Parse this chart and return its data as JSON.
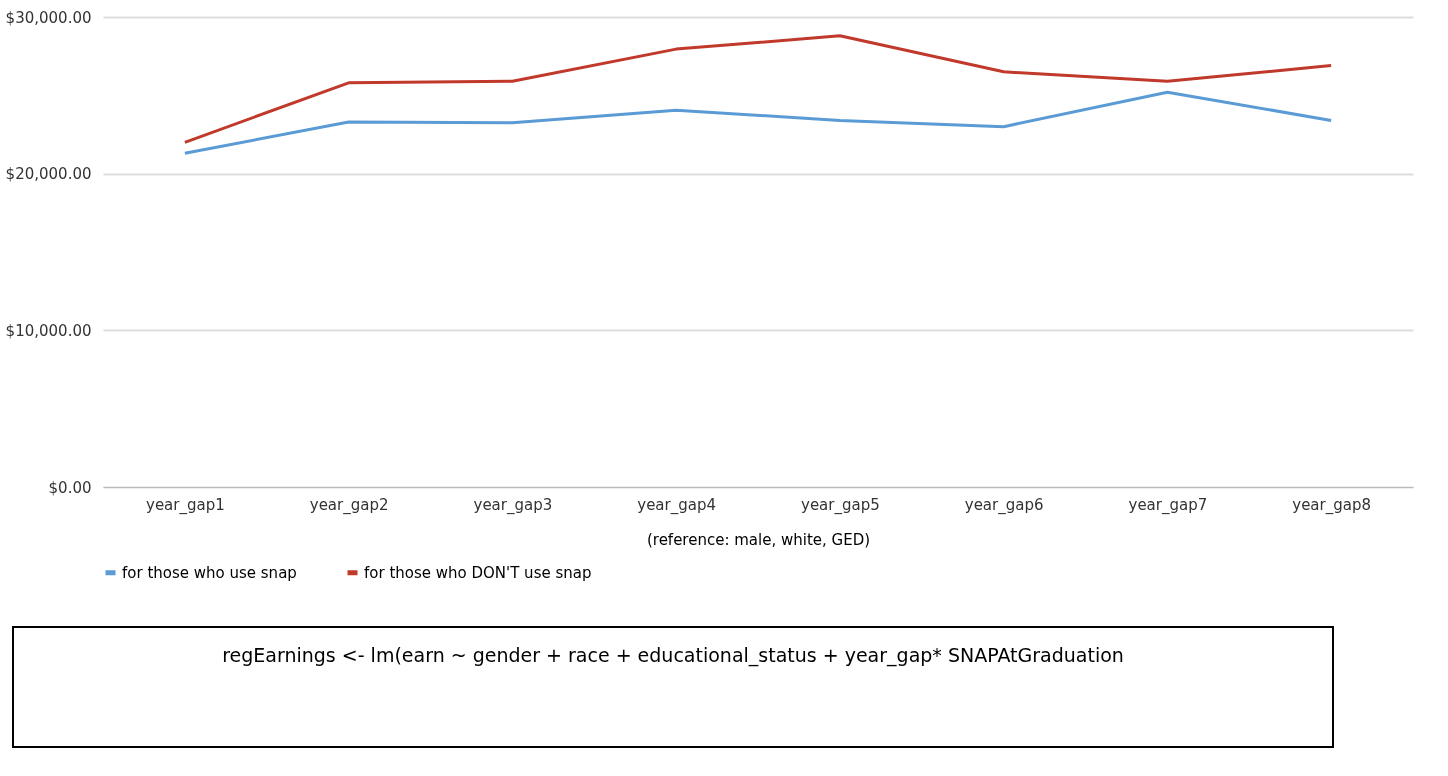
{
  "chart_data": {
    "type": "line",
    "xlabel": "(reference: male, white, GED)",
    "categories": [
      "year_gap1",
      "year_gap2",
      "year_gap3",
      "year_gap4",
      "year_gap5",
      "year_gap6",
      "year_gap7",
      "year_gap8"
    ],
    "series": [
      {
        "name": "for those who use snap",
        "color": "#5b9bd5",
        "values": [
          21300,
          23300,
          23250,
          24050,
          23400,
          23000,
          25200,
          23400
        ]
      },
      {
        "name": "for those who DON'T use snap",
        "color": "#c0392b",
        "values": [
          22000,
          25800,
          25900,
          27950,
          28800,
          26500,
          25900,
          26900
        ]
      }
    ],
    "ylim": [
      0,
      30000
    ],
    "yticks": [
      {
        "value": 0,
        "label": "$0.00"
      },
      {
        "value": 10000,
        "label": "$10,000.00"
      },
      {
        "value": 20000,
        "label": "$20,000.00"
      },
      {
        "value": 30000,
        "label": "$30,000.00"
      }
    ],
    "grid": "y",
    "legend": "bottom",
    "marker": "none",
    "line_style": "solid",
    "annotations": [
      "regEarnings <- lm(earn ~ gender + race + educational_status + year_gap* SNAPAtGraduation"
    ]
  }
}
